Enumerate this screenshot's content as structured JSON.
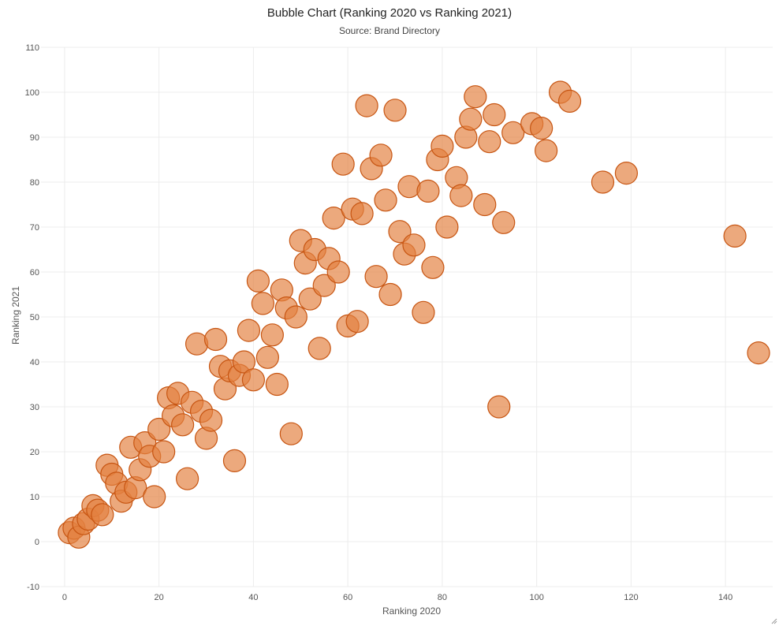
{
  "chart_data": {
    "type": "scatter",
    "title": "Bubble Chart (Ranking 2020 vs Ranking 2021)",
    "subtitle": "Source: Brand Directory",
    "xlabel": "Ranking 2020",
    "ylabel": "Ranking 2021",
    "xlim": [
      -5,
      150
    ],
    "ylim": [
      -10,
      110
    ],
    "xticks": [
      0,
      20,
      40,
      60,
      80,
      100,
      120,
      140
    ],
    "yticks": [
      -10,
      0,
      10,
      20,
      30,
      40,
      50,
      60,
      70,
      80,
      90,
      100,
      110
    ],
    "grid": true,
    "legend": "none",
    "colors": {
      "fill": "#e3803f",
      "stroke": "#c75512"
    },
    "series": [
      {
        "points": [
          {
            "x": 1,
            "y": 2
          },
          {
            "x": 2,
            "y": 3
          },
          {
            "x": 3,
            "y": 1
          },
          {
            "x": 4,
            "y": 4
          },
          {
            "x": 5,
            "y": 5
          },
          {
            "x": 6,
            "y": 8
          },
          {
            "x": 7,
            "y": 7
          },
          {
            "x": 8,
            "y": 6
          },
          {
            "x": 9,
            "y": 17
          },
          {
            "x": 10,
            "y": 15
          },
          {
            "x": 11,
            "y": 13
          },
          {
            "x": 12,
            "y": 9
          },
          {
            "x": 13,
            "y": 11
          },
          {
            "x": 14,
            "y": 21
          },
          {
            "x": 15,
            "y": 12
          },
          {
            "x": 16,
            "y": 16
          },
          {
            "x": 17,
            "y": 22
          },
          {
            "x": 18,
            "y": 19
          },
          {
            "x": 19,
            "y": 10
          },
          {
            "x": 20,
            "y": 25
          },
          {
            "x": 21,
            "y": 20
          },
          {
            "x": 22,
            "y": 32
          },
          {
            "x": 23,
            "y": 28
          },
          {
            "x": 24,
            "y": 33
          },
          {
            "x": 25,
            "y": 26
          },
          {
            "x": 26,
            "y": 14
          },
          {
            "x": 27,
            "y": 31
          },
          {
            "x": 28,
            "y": 44
          },
          {
            "x": 29,
            "y": 29
          },
          {
            "x": 30,
            "y": 23
          },
          {
            "x": 31,
            "y": 27
          },
          {
            "x": 32,
            "y": 45
          },
          {
            "x": 33,
            "y": 39
          },
          {
            "x": 34,
            "y": 34
          },
          {
            "x": 35,
            "y": 38
          },
          {
            "x": 36,
            "y": 18
          },
          {
            "x": 37,
            "y": 37
          },
          {
            "x": 38,
            "y": 40
          },
          {
            "x": 39,
            "y": 47
          },
          {
            "x": 40,
            "y": 36
          },
          {
            "x": 41,
            "y": 58
          },
          {
            "x": 42,
            "y": 53
          },
          {
            "x": 43,
            "y": 41
          },
          {
            "x": 44,
            "y": 46
          },
          {
            "x": 45,
            "y": 35
          },
          {
            "x": 46,
            "y": 56
          },
          {
            "x": 47,
            "y": 52
          },
          {
            "x": 48,
            "y": 24
          },
          {
            "x": 49,
            "y": 50
          },
          {
            "x": 50,
            "y": 67
          },
          {
            "x": 51,
            "y": 62
          },
          {
            "x": 52,
            "y": 54
          },
          {
            "x": 53,
            "y": 65
          },
          {
            "x": 54,
            "y": 43
          },
          {
            "x": 55,
            "y": 57
          },
          {
            "x": 56,
            "y": 63
          },
          {
            "x": 57,
            "y": 72
          },
          {
            "x": 58,
            "y": 60
          },
          {
            "x": 59,
            "y": 84
          },
          {
            "x": 60,
            "y": 48
          },
          {
            "x": 61,
            "y": 74
          },
          {
            "x": 62,
            "y": 49
          },
          {
            "x": 63,
            "y": 73
          },
          {
            "x": 64,
            "y": 97
          },
          {
            "x": 65,
            "y": 83
          },
          {
            "x": 66,
            "y": 59
          },
          {
            "x": 67,
            "y": 86
          },
          {
            "x": 68,
            "y": 76
          },
          {
            "x": 69,
            "y": 55
          },
          {
            "x": 70,
            "y": 96
          },
          {
            "x": 71,
            "y": 69
          },
          {
            "x": 72,
            "y": 64
          },
          {
            "x": 73,
            "y": 79
          },
          {
            "x": 74,
            "y": 66
          },
          {
            "x": 76,
            "y": 51
          },
          {
            "x": 77,
            "y": 78
          },
          {
            "x": 78,
            "y": 61
          },
          {
            "x": 79,
            "y": 85
          },
          {
            "x": 80,
            "y": 88
          },
          {
            "x": 81,
            "y": 70
          },
          {
            "x": 83,
            "y": 81
          },
          {
            "x": 84,
            "y": 77
          },
          {
            "x": 85,
            "y": 90
          },
          {
            "x": 86,
            "y": 94
          },
          {
            "x": 87,
            "y": 99
          },
          {
            "x": 89,
            "y": 75
          },
          {
            "x": 90,
            "y": 89
          },
          {
            "x": 91,
            "y": 95
          },
          {
            "x": 92,
            "y": 30
          },
          {
            "x": 93,
            "y": 71
          },
          {
            "x": 95,
            "y": 91
          },
          {
            "x": 99,
            "y": 93
          },
          {
            "x": 101,
            "y": 92
          },
          {
            "x": 102,
            "y": 87
          },
          {
            "x": 105,
            "y": 100
          },
          {
            "x": 107,
            "y": 98
          },
          {
            "x": 114,
            "y": 80
          },
          {
            "x": 119,
            "y": 82
          },
          {
            "x": 142,
            "y": 68
          },
          {
            "x": 147,
            "y": 42
          }
        ]
      }
    ]
  }
}
